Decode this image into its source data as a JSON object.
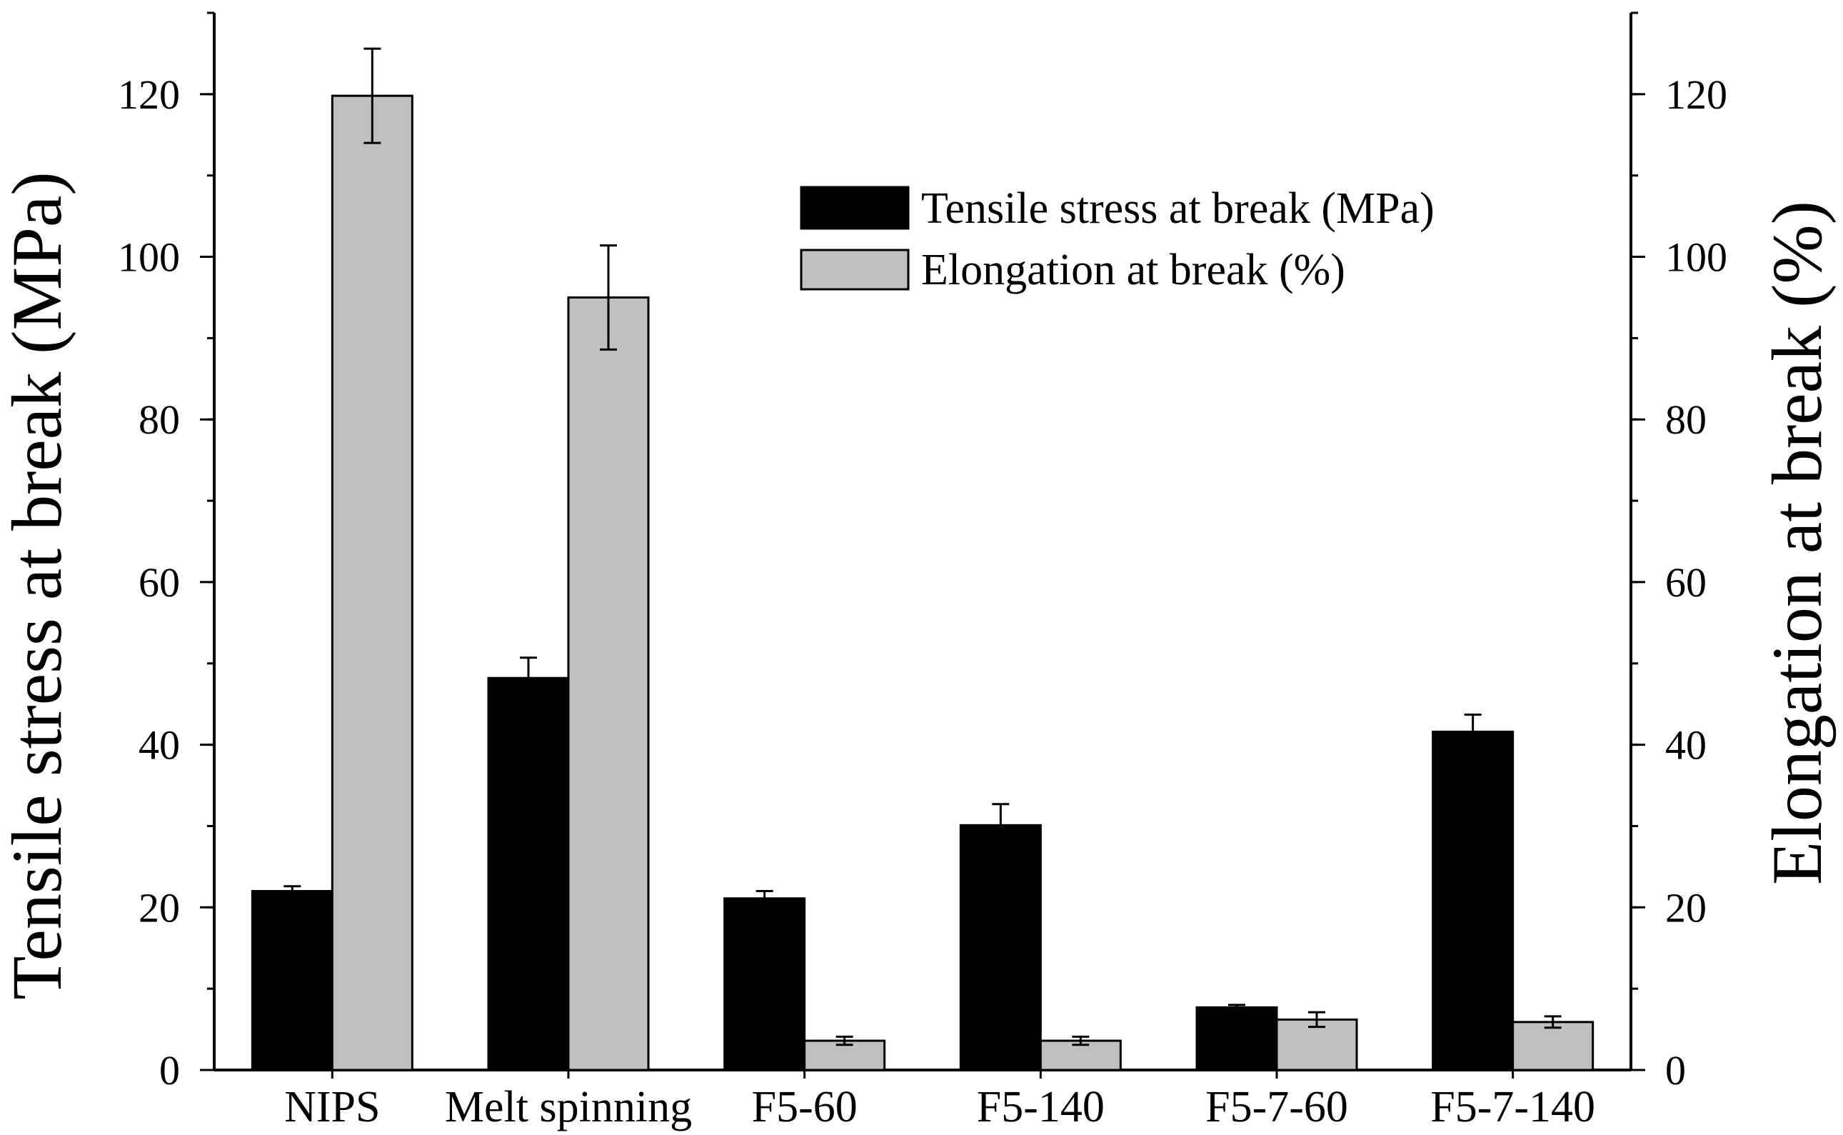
{
  "chart_data": {
    "type": "bar",
    "title": "",
    "categories": [
      "NIPS",
      "Melt spinning",
      "F5-60",
      "F5-140",
      "F5-7-60",
      "F5-7-140"
    ],
    "series": [
      {
        "name": "Tensile stress at break (MPa)",
        "axis": "left",
        "color": "#000000",
        "values": [
          22.0,
          48.2,
          21.1,
          30.1,
          7.7,
          41.6
        ],
        "errors": [
          0.6,
          2.5,
          0.9,
          2.6,
          0.3,
          2.1
        ]
      },
      {
        "name": "Elongation at break (%)",
        "axis": "right",
        "color": "#c0c0c0",
        "values": [
          119.8,
          95.0,
          3.6,
          3.6,
          6.2,
          5.9
        ],
        "errors": [
          5.8,
          6.4,
          0.5,
          0.5,
          0.9,
          0.7
        ]
      }
    ],
    "ylabel": "Tensile stress at break (MPa)",
    "y2label": "Elongation at break (%)",
    "ylim": [
      0,
      130
    ],
    "y2lim": [
      0,
      130
    ],
    "yticks": [
      0,
      20,
      40,
      60,
      80,
      100,
      120
    ],
    "y2ticks": [
      0,
      20,
      40,
      60,
      80,
      100,
      120
    ],
    "minor_tick_step": 10,
    "legend_position": "top-right",
    "grid": false
  }
}
